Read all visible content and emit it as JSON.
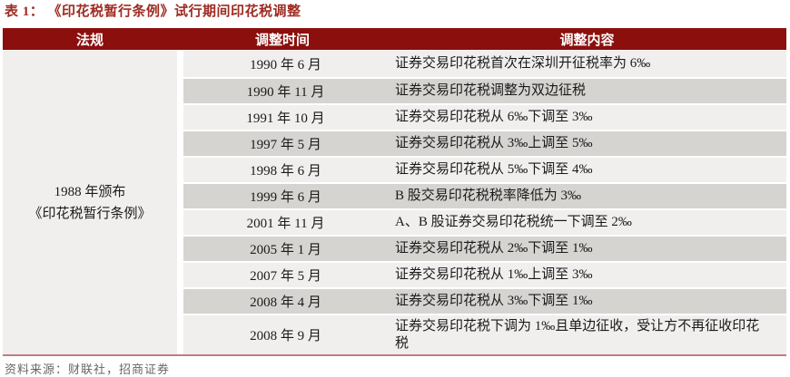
{
  "title": "表 1： 《印花税暂行条例》试行期间印花税调整",
  "source": "资料来源：财联社，招商证券",
  "colors": {
    "title": "#9E2B22",
    "header_bg": "#8B0F0D",
    "row_light": "#F1EFEE",
    "row_dark": "#D5D4D1",
    "border_line": "#BE7E7F",
    "source_text": "#666666"
  },
  "table": {
    "headers": [
      "法规",
      "调整时间",
      "调整内容"
    ],
    "regulation": {
      "line1": "1988 年颁布",
      "line2": "《印花税暂行条例》"
    },
    "rows": [
      {
        "date": "1990 年 6 月",
        "content": "证券交易印花税首次在深圳开征税率为 6‰"
      },
      {
        "date": "1990 年 11 月",
        "content": "证券交易印花税调整为双边征税"
      },
      {
        "date": "1991 年 10 月",
        "content": "证券交易印花税从 6‰下调至 3‰"
      },
      {
        "date": "1997 年 5 月",
        "content": "证券交易印花税从 3‰上调至 5‰"
      },
      {
        "date": "1998 年 6 月",
        "content": "证券交易印花税从 5‰下调至 4‰"
      },
      {
        "date": "1999 年 6 月",
        "content": "B 股交易印花税税率降低为 3‰"
      },
      {
        "date": "2001 年 11 月",
        "content": "A、B 股证券交易印花税统一下调至 2‰"
      },
      {
        "date": "2005 年 1 月",
        "content": "证券交易印花税从 2‰下调至 1‰"
      },
      {
        "date": "2007 年 5 月",
        "content": "证券交易印花税从 1‰上调至 3‰"
      },
      {
        "date": "2008 年 4 月",
        "content": "证券交易印花税从 3‰下调至 1‰"
      },
      {
        "date": "2008 年 9 月",
        "content": "证券交易印花税下调为 1‰且单边征收，受让方不再征收印花税"
      }
    ]
  }
}
